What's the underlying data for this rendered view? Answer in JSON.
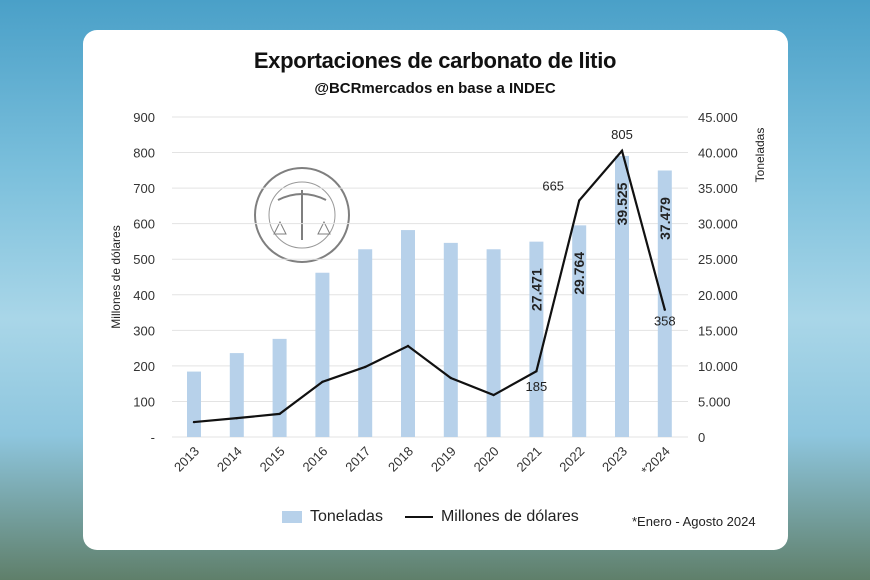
{
  "chart_data": {
    "type": "bar+line",
    "title": "Exportaciones de carbonato de litio",
    "subtitle": "@BCRmercados en base a INDEC",
    "categories": [
      "2013",
      "2014",
      "2015",
      "2016",
      "2017",
      "2018",
      "2019",
      "2020",
      "2021",
      "2022",
      "2023",
      "*2024"
    ],
    "series": [
      {
        "name": "Toneladas",
        "type": "bar",
        "axis": "right",
        "color": "#b7d1ea",
        "values": [
          9200,
          11800,
          13800,
          23100,
          26400,
          29100,
          27300,
          26400,
          27471,
          29764,
          39525,
          37479
        ],
        "labels": {
          "8": "27.471",
          "9": "29.764",
          "10": "39.525",
          "11": "37.479"
        }
      },
      {
        "name": "Millones de dólares",
        "type": "line",
        "axis": "left",
        "color": "#111111",
        "values": [
          42,
          53,
          65,
          155,
          197,
          256,
          166,
          118,
          185,
          665,
          805,
          358
        ],
        "labels": {
          "8": "185",
          "9": "665",
          "10": "805",
          "11": "358"
        }
      }
    ],
    "ylabel_left": "Millones de dólares",
    "ylabel_right": "Toneladas",
    "ylim_left": [
      0,
      900
    ],
    "ylim_right": [
      0,
      45000
    ],
    "left_ticks": [
      "-",
      "100",
      "200",
      "300",
      "400",
      "500",
      "600",
      "700",
      "800",
      "900"
    ],
    "right_ticks": [
      "0",
      "5.000",
      "10.000",
      "15.000",
      "20.000",
      "25.000",
      "30.000",
      "35.000",
      "40.000",
      "45.000"
    ],
    "grid": true,
    "legend_position": "bottom",
    "footnote": "*Enero - Agosto 2024",
    "watermark": "BOLSA DE COMERCIO DE ROSARIO"
  }
}
